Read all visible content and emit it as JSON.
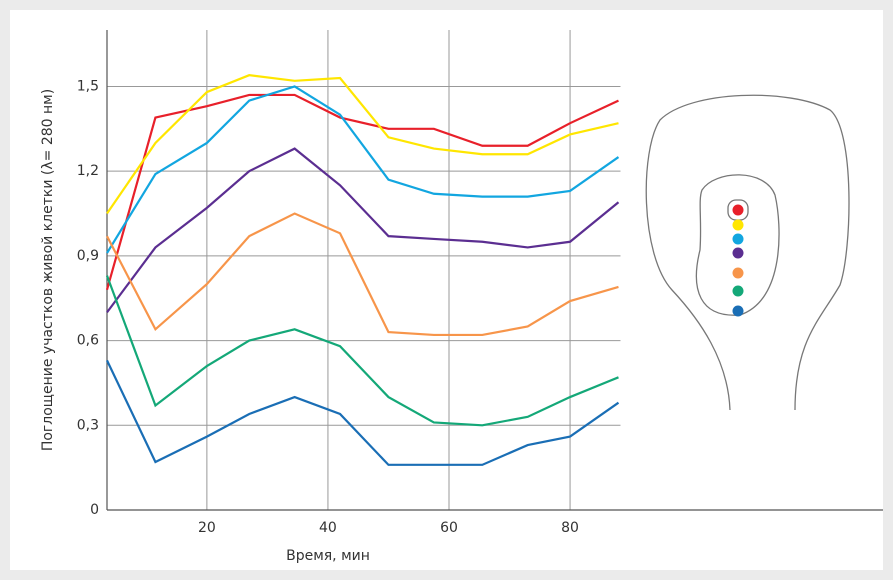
{
  "chart_data": {
    "type": "line",
    "xlabel": "Время, мин",
    "ylabel": "Поглощение участков живой клетки (λ= 280 нм)",
    "x": [
      3.5,
      11.5,
      20,
      27,
      34.5,
      42,
      50,
      57.5,
      65.5,
      73,
      80,
      88
    ],
    "series": [
      {
        "color": "#e8202a",
        "values": [
          0.78,
          1.39,
          1.43,
          1.47,
          1.47,
          1.39,
          1.35,
          1.35,
          1.29,
          1.29,
          1.37,
          1.45
        ]
      },
      {
        "color": "#ffe600",
        "values": [
          1.05,
          1.3,
          1.48,
          1.54,
          1.52,
          1.53,
          1.32,
          1.28,
          1.26,
          1.26,
          1.33,
          1.37
        ]
      },
      {
        "color": "#12a6e0",
        "values": [
          0.91,
          1.19,
          1.3,
          1.45,
          1.5,
          1.4,
          1.17,
          1.12,
          1.11,
          1.11,
          1.13,
          1.25
        ]
      },
      {
        "color": "#5b2e91",
        "values": [
          0.7,
          0.93,
          1.07,
          1.2,
          1.28,
          1.15,
          0.97,
          0.96,
          0.95,
          0.93,
          0.95,
          1.09
        ]
      },
      {
        "color": "#f7954a",
        "values": [
          0.97,
          0.64,
          0.8,
          0.97,
          1.05,
          0.98,
          0.63,
          0.62,
          0.62,
          0.65,
          0.74,
          0.79
        ]
      },
      {
        "color": "#14a878",
        "values": [
          0.83,
          0.37,
          0.51,
          0.6,
          0.64,
          0.58,
          0.4,
          0.31,
          0.3,
          0.33,
          0.4,
          0.47
        ]
      },
      {
        "color": "#1a6eb5",
        "values": [
          0.53,
          0.17,
          0.26,
          0.34,
          0.4,
          0.34,
          0.16,
          0.16,
          0.16,
          0.23,
          0.26,
          0.38
        ]
      }
    ],
    "xlim": [
      3.5,
      131.7
    ],
    "xticks": [
      20,
      40,
      60,
      80
    ],
    "ylim": [
      0,
      1.7
    ],
    "yticks": [
      0,
      {
        "value": 0.3,
        "label": "0,3"
      },
      {
        "value": 0.6,
        "label": "0,6"
      },
      {
        "value": 0.9,
        "label": "0,9"
      },
      {
        "value": 1.2,
        "label": "1,2"
      },
      {
        "value": 1.5,
        "label": "1,5"
      }
    ],
    "grid": true
  }
}
